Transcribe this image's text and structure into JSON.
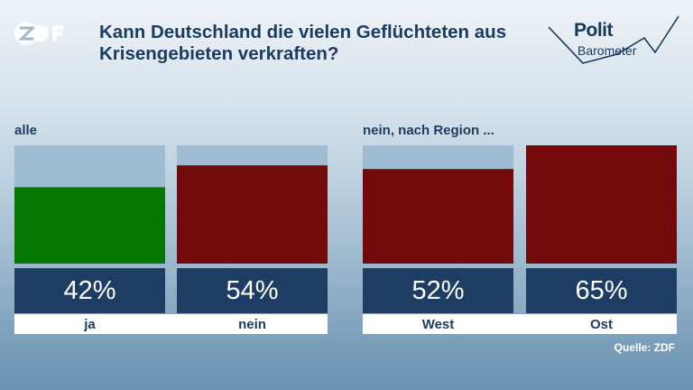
{
  "brand": {
    "logo_icon": "zdf-logo-icon",
    "polit": "Polit",
    "barometer": "Barometer"
  },
  "title": "Kann Deutschland die vielen Geflüchteten aus Krisengebieten verkraften?",
  "groups": {
    "left": "alle",
    "right": "nein, nach Region ..."
  },
  "source": "Quelle: ZDF",
  "colors": {
    "ja": "#047800",
    "nein": "#720a0b",
    "track": "#9fbdd2",
    "value_box": "#1d3d62"
  },
  "chart_data": {
    "type": "bar",
    "categories": [
      "ja",
      "nein",
      "West",
      "Ost"
    ],
    "values": [
      42,
      54,
      52,
      65
    ],
    "value_labels": [
      "42%",
      "54%",
      "52%",
      "65%"
    ],
    "ylim": [
      0,
      65
    ],
    "unit": "%"
  }
}
